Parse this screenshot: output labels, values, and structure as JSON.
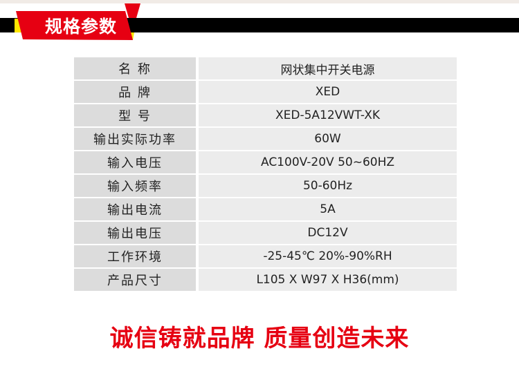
{
  "header": {
    "title": "规格参数",
    "colors": {
      "red": "#e60012",
      "black": "#000000",
      "yellow": "#ffe600"
    }
  },
  "specs": [
    {
      "label": "名 称",
      "value": "网状集中开关电源"
    },
    {
      "label": "品 牌",
      "value": "XED"
    },
    {
      "label": "型 号",
      "value": "XED-5A12VWT-XK"
    },
    {
      "label": "输出实际功率",
      "value": "60W"
    },
    {
      "label": "输入电压",
      "value": "AC100V-20V 50~60HZ"
    },
    {
      "label": "输入频率",
      "value": "50-60Hz"
    },
    {
      "label": "输出电流",
      "value": "5A"
    },
    {
      "label": "输出电压",
      "value": "DC12V"
    },
    {
      "label": "工作环境",
      "value": "-25-45℃ 20%-90%RH"
    },
    {
      "label": "产品尺寸",
      "value": "L105 X W97 X H36(mm)"
    }
  ],
  "slogan": "诚信铸就品牌 质量创造未来"
}
